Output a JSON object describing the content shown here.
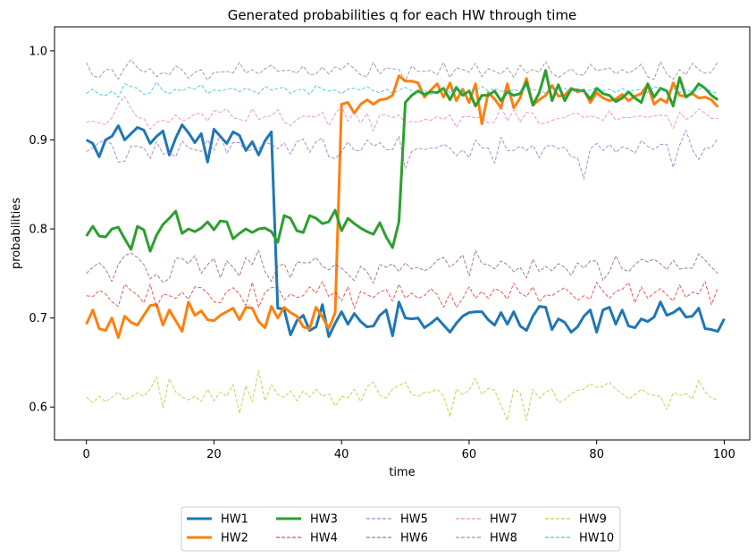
{
  "chart_data": {
    "type": "line",
    "title": "Generated probabilities q for each HW through time",
    "xlabel": "time",
    "ylabel": "probabilities",
    "xlim": [
      -5,
      104
    ],
    "ylim": [
      0.563,
      1.027
    ],
    "xticks": [
      0,
      20,
      40,
      60,
      80,
      100
    ],
    "xtick_labels": [
      "0",
      "20",
      "40",
      "60",
      "80",
      "100"
    ],
    "yticks": [
      0.6,
      0.7,
      0.8,
      0.9,
      1.0
    ],
    "ytick_labels": [
      "0.6",
      "0.7",
      "0.8",
      "0.9",
      "1.0"
    ],
    "grid": false,
    "legend_position": "bottom-center",
    "legend_columns": 5,
    "series": [
      {
        "name": "HW1",
        "color": "#1f77b4",
        "style": "solid",
        "width": "thick",
        "x_start": 0,
        "values": [
          0.9,
          0.896,
          0.881,
          0.9,
          0.904,
          0.916,
          0.9,
          0.907,
          0.914,
          0.911,
          0.896,
          0.904,
          0.91,
          0.883,
          0.902,
          0.917,
          0.908,
          0.897,
          0.907,
          0.875,
          0.912,
          0.904,
          0.896,
          0.909,
          0.905,
          0.888,
          0.898,
          0.883,
          0.899,
          0.909,
          0.711,
          0.71,
          0.681,
          0.697,
          0.703,
          0.686,
          0.69,
          0.715,
          0.679,
          0.694,
          0.707,
          0.693,
          0.705,
          0.696,
          0.69,
          0.691,
          0.703,
          0.709,
          0.68,
          0.718,
          0.7,
          0.699,
          0.7,
          0.689,
          0.694,
          0.7,
          0.692,
          0.684,
          0.694,
          0.702,
          0.706,
          0.707,
          0.707,
          0.698,
          0.692,
          0.706,
          0.693,
          0.707,
          0.691,
          0.686,
          0.702,
          0.713,
          0.712,
          0.687,
          0.699,
          0.695,
          0.684,
          0.69,
          0.702,
          0.709,
          0.684,
          0.709,
          0.712,
          0.693,
          0.709,
          0.691,
          0.689,
          0.699,
          0.696,
          0.701,
          0.718,
          0.703,
          0.706,
          0.711,
          0.701,
          0.702,
          0.711,
          0.688,
          0.687,
          0.685,
          0.699
        ]
      },
      {
        "name": "HW2",
        "color": "#ff7f0e",
        "style": "solid",
        "width": "thick",
        "x_start": 0,
        "values": [
          0.693,
          0.709,
          0.688,
          0.686,
          0.7,
          0.678,
          0.702,
          0.695,
          0.692,
          0.703,
          0.714,
          0.715,
          0.692,
          0.709,
          0.697,
          0.685,
          0.718,
          0.703,
          0.708,
          0.698,
          0.697,
          0.703,
          0.707,
          0.711,
          0.698,
          0.712,
          0.711,
          0.696,
          0.689,
          0.713,
          0.7,
          0.712,
          0.706,
          0.702,
          0.69,
          0.688,
          0.712,
          0.701,
          0.688,
          0.706,
          0.94,
          0.942,
          0.93,
          0.94,
          0.945,
          0.94,
          0.945,
          0.946,
          0.95,
          0.972,
          0.966,
          0.966,
          0.964,
          0.948,
          0.956,
          0.963,
          0.948,
          0.964,
          0.944,
          0.957,
          0.942,
          0.963,
          0.918,
          0.953,
          0.946,
          0.936,
          0.963,
          0.936,
          0.947,
          0.969,
          0.939,
          0.945,
          0.95,
          0.961,
          0.949,
          0.95,
          0.958,
          0.954,
          0.956,
          0.942,
          0.953,
          0.947,
          0.944,
          0.946,
          0.951,
          0.944,
          0.949,
          0.952,
          0.962,
          0.94,
          0.946,
          0.942,
          0.964,
          0.95,
          0.949,
          0.952,
          0.947,
          0.948,
          0.945,
          0.937
        ]
      },
      {
        "name": "HW3",
        "color": "#2ca02c",
        "style": "solid",
        "width": "thick",
        "x_start": 0,
        "values": [
          0.792,
          0.803,
          0.792,
          0.791,
          0.8,
          0.802,
          0.789,
          0.777,
          0.803,
          0.799,
          0.775,
          0.793,
          0.805,
          0.812,
          0.82,
          0.795,
          0.8,
          0.797,
          0.801,
          0.808,
          0.799,
          0.809,
          0.808,
          0.789,
          0.795,
          0.8,
          0.796,
          0.8,
          0.801,
          0.797,
          0.785,
          0.815,
          0.812,
          0.798,
          0.796,
          0.815,
          0.812,
          0.806,
          0.808,
          0.821,
          0.798,
          0.812,
          0.806,
          0.801,
          0.797,
          0.794,
          0.807,
          0.791,
          0.779,
          0.808,
          0.942,
          0.95,
          0.955,
          0.951,
          0.954,
          0.953,
          0.958,
          0.945,
          0.959,
          0.95,
          0.955,
          0.938,
          0.95,
          0.95,
          0.955,
          0.944,
          0.954,
          0.95,
          0.952,
          0.965,
          0.939,
          0.953,
          0.978,
          0.944,
          0.962,
          0.944,
          0.957,
          0.956,
          0.955,
          0.946,
          0.958,
          0.952,
          0.95,
          0.943,
          0.947,
          0.954,
          0.947,
          0.942,
          0.963,
          0.948,
          0.958,
          0.955,
          0.938,
          0.97,
          0.948,
          0.953,
          0.963,
          0.958,
          0.95,
          0.945
        ]
      },
      {
        "name": "HW4",
        "color": "#d62728",
        "style": "dashed",
        "width": "thin",
        "x_start": 0,
        "values": [
          0.725,
          0.724,
          0.731,
          0.727,
          0.718,
          0.713,
          0.738,
          0.731,
          0.726,
          0.717,
          0.738,
          0.712,
          0.727,
          0.725,
          0.722,
          0.729,
          0.721,
          0.735,
          0.734,
          0.728,
          0.718,
          0.717,
          0.73,
          0.734,
          0.727,
          0.714,
          0.74,
          0.712,
          0.729,
          0.734,
          0.735,
          0.72,
          0.727,
          0.723,
          0.725,
          0.735,
          0.728,
          0.741,
          0.724,
          0.729,
          0.719,
          0.735,
          0.711,
          0.73,
          0.726,
          0.723,
          0.729,
          0.732,
          0.719,
          0.738,
          0.722,
          0.728,
          0.722,
          0.725,
          0.733,
          0.726,
          0.712,
          0.728,
          0.712,
          0.722,
          0.735,
          0.722,
          0.73,
          0.722,
          0.733,
          0.73,
          0.721,
          0.739,
          0.728,
          0.724,
          0.735,
          0.718,
          0.726,
          0.725,
          0.73,
          0.734,
          0.727,
          0.72,
          0.725,
          0.721,
          0.74,
          0.73,
          0.722,
          0.73,
          0.732,
          0.74,
          0.717,
          0.735,
          0.722,
          0.728,
          0.733,
          0.726,
          0.719,
          0.737,
          0.723,
          0.729,
          0.727,
          0.741,
          0.715,
          0.734
        ]
      },
      {
        "name": "HW5",
        "color": "#9467bd",
        "style": "dashed",
        "width": "thin",
        "x_start": 0,
        "values": [
          0.887,
          0.891,
          0.897,
          0.9,
          0.895,
          0.875,
          0.876,
          0.893,
          0.893,
          0.891,
          0.879,
          0.898,
          0.884,
          0.886,
          0.881,
          0.899,
          0.891,
          0.889,
          0.887,
          0.9,
          0.888,
          0.906,
          0.885,
          0.897,
          0.897,
          0.887,
          0.889,
          0.89,
          0.897,
          0.895,
          0.89,
          0.897,
          0.884,
          0.898,
          0.901,
          0.886,
          0.898,
          0.902,
          0.881,
          0.879,
          0.886,
          0.898,
          0.888,
          0.888,
          0.9,
          0.893,
          0.897,
          0.889,
          0.889,
          0.904,
          0.868,
          0.887,
          0.891,
          0.889,
          0.891,
          0.891,
          0.895,
          0.891,
          0.882,
          0.889,
          0.88,
          0.9,
          0.891,
          0.891,
          0.874,
          0.903,
          0.888,
          0.888,
          0.893,
          0.888,
          0.894,
          0.88,
          0.893,
          0.894,
          0.89,
          0.892,
          0.881,
          0.88,
          0.856,
          0.89,
          0.896,
          0.888,
          0.895,
          0.886,
          0.892,
          0.89,
          0.885,
          0.899,
          0.893,
          0.889,
          0.895,
          0.895,
          0.869,
          0.894,
          0.911,
          0.889,
          0.878,
          0.891,
          0.891,
          0.902
        ]
      },
      {
        "name": "HW6",
        "color": "#8c564b",
        "style": "dashed",
        "width": "thin",
        "x_start": 0,
        "values": [
          0.75,
          0.757,
          0.762,
          0.755,
          0.741,
          0.76,
          0.77,
          0.773,
          0.768,
          0.76,
          0.744,
          0.749,
          0.74,
          0.744,
          0.767,
          0.767,
          0.761,
          0.77,
          0.75,
          0.76,
          0.767,
          0.745,
          0.764,
          0.757,
          0.747,
          0.768,
          0.76,
          0.776,
          0.752,
          0.741,
          0.758,
          0.761,
          0.745,
          0.763,
          0.762,
          0.762,
          0.768,
          0.758,
          0.754,
          0.76,
          0.756,
          0.749,
          0.742,
          0.758,
          0.752,
          0.739,
          0.76,
          0.757,
          0.761,
          0.752,
          0.762,
          0.755,
          0.757,
          0.753,
          0.757,
          0.765,
          0.768,
          0.757,
          0.763,
          0.771,
          0.747,
          0.776,
          0.761,
          0.76,
          0.755,
          0.764,
          0.76,
          0.752,
          0.757,
          0.745,
          0.766,
          0.752,
          0.758,
          0.753,
          0.761,
          0.757,
          0.748,
          0.762,
          0.756,
          0.764,
          0.764,
          0.742,
          0.752,
          0.77,
          0.755,
          0.752,
          0.76,
          0.766,
          0.763,
          0.766,
          0.761,
          0.754,
          0.765,
          0.755,
          0.756,
          0.756,
          0.772,
          0.765,
          0.757,
          0.75
        ]
      },
      {
        "name": "HW7",
        "color": "#e377c2",
        "style": "dashed",
        "width": "thin",
        "x_start": 0,
        "values": [
          0.92,
          0.921,
          0.919,
          0.917,
          0.925,
          0.94,
          0.949,
          0.935,
          0.925,
          0.924,
          0.912,
          0.92,
          0.922,
          0.92,
          0.928,
          0.921,
          0.924,
          0.929,
          0.93,
          0.921,
          0.933,
          0.931,
          0.935,
          0.925,
          0.923,
          0.921,
          0.935,
          0.923,
          0.926,
          0.927,
          0.934,
          0.92,
          0.916,
          0.923,
          0.927,
          0.926,
          0.926,
          0.931,
          0.916,
          0.929,
          0.938,
          0.921,
          0.931,
          0.919,
          0.93,
          0.91,
          0.928,
          0.928,
          0.925,
          0.928,
          0.919,
          0.921,
          0.92,
          0.923,
          0.922,
          0.926,
          0.923,
          0.928,
          0.914,
          0.926,
          0.926,
          0.925,
          0.925,
          0.919,
          0.92,
          0.938,
          0.921,
          0.934,
          0.92,
          0.931,
          0.93,
          0.918,
          0.919,
          0.922,
          0.924,
          0.925,
          0.929,
          0.93,
          0.925,
          0.927,
          0.925,
          0.922,
          0.933,
          0.922,
          0.925,
          0.925,
          0.926,
          0.927,
          0.925,
          0.927,
          0.928,
          0.927,
          0.913,
          0.931,
          0.923,
          0.927,
          0.935,
          0.93,
          0.924,
          0.924
        ]
      },
      {
        "name": "HW8",
        "color": "#7f7f7f",
        "style": "dashed",
        "width": "thin",
        "x_start": 0,
        "values": [
          0.987,
          0.972,
          0.97,
          0.979,
          0.979,
          0.968,
          0.981,
          0.99,
          0.981,
          0.976,
          0.98,
          0.971,
          0.976,
          0.973,
          0.983,
          0.979,
          0.969,
          0.976,
          0.979,
          0.967,
          0.976,
          0.976,
          0.977,
          0.975,
          0.987,
          0.975,
          0.979,
          0.974,
          0.98,
          0.984,
          0.977,
          0.978,
          0.978,
          0.975,
          0.983,
          0.973,
          0.974,
          0.982,
          0.974,
          0.982,
          0.979,
          0.986,
          0.98,
          0.973,
          0.971,
          0.987,
          0.974,
          0.981,
          0.98,
          0.979,
          0.966,
          0.983,
          0.977,
          0.977,
          0.978,
          0.973,
          0.987,
          0.97,
          0.981,
          0.979,
          0.976,
          0.986,
          0.971,
          0.98,
          0.977,
          0.974,
          0.981,
          0.97,
          0.984,
          0.975,
          0.979,
          0.976,
          0.988,
          0.975,
          0.97,
          0.975,
          0.98,
          0.973,
          0.973,
          0.985,
          0.978,
          0.979,
          0.981,
          0.974,
          0.979,
          0.975,
          0.979,
          0.985,
          0.971,
          0.968,
          0.988,
          0.974,
          0.968,
          0.979,
          0.973,
          0.986,
          0.979,
          0.975,
          0.976,
          0.988
        ]
      },
      {
        "name": "HW9",
        "color": "#bcbd22",
        "style": "dashed",
        "width": "thin",
        "x_start": 0,
        "values": [
          0.611,
          0.605,
          0.612,
          0.606,
          0.611,
          0.617,
          0.608,
          0.611,
          0.616,
          0.612,
          0.62,
          0.634,
          0.599,
          0.632,
          0.617,
          0.611,
          0.608,
          0.612,
          0.606,
          0.62,
          0.607,
          0.617,
          0.612,
          0.625,
          0.593,
          0.624,
          0.606,
          0.641,
          0.607,
          0.625,
          0.614,
          0.611,
          0.618,
          0.607,
          0.618,
          0.611,
          0.62,
          0.612,
          0.615,
          0.601,
          0.612,
          0.61,
          0.62,
          0.606,
          0.623,
          0.628,
          0.613,
          0.61,
          0.62,
          0.624,
          0.628,
          0.614,
          0.612,
          0.616,
          0.617,
          0.62,
          0.612,
          0.589,
          0.62,
          0.614,
          0.619,
          0.632,
          0.614,
          0.621,
          0.619,
          0.602,
          0.585,
          0.62,
          0.616,
          0.585,
          0.62,
          0.61,
          0.617,
          0.62,
          0.605,
          0.608,
          0.615,
          0.619,
          0.62,
          0.626,
          0.622,
          0.623,
          0.628,
          0.62,
          0.615,
          0.609,
          0.614,
          0.62,
          0.615,
          0.613,
          0.612,
          0.597,
          0.616,
          0.613,
          0.615,
          0.609,
          0.63,
          0.617,
          0.61,
          0.608
        ]
      },
      {
        "name": "HW10",
        "color": "#17becf",
        "style": "dashed",
        "width": "thin",
        "x_start": 0,
        "values": [
          0.952,
          0.957,
          0.951,
          0.95,
          0.955,
          0.948,
          0.963,
          0.96,
          0.958,
          0.951,
          0.953,
          0.965,
          0.955,
          0.952,
          0.957,
          0.955,
          0.959,
          0.957,
          0.962,
          0.952,
          0.956,
          0.955,
          0.957,
          0.958,
          0.954,
          0.958,
          0.955,
          0.952,
          0.96,
          0.956,
          0.958,
          0.959,
          0.952,
          0.956,
          0.957,
          0.951,
          0.961,
          0.957,
          0.955,
          0.956,
          0.952,
          0.957,
          0.958,
          0.956,
          0.96,
          0.955,
          0.953,
          0.957,
          0.952,
          0.956,
          0.959,
          0.955,
          0.954,
          0.956,
          0.951,
          0.956,
          0.957,
          0.953,
          0.959,
          0.955,
          0.954,
          0.956,
          0.96,
          0.955,
          0.958,
          0.955,
          0.953,
          0.957,
          0.954,
          0.96,
          0.956,
          0.957,
          0.952,
          0.96,
          0.955,
          0.958,
          0.954,
          0.957,
          0.953,
          0.956,
          0.959,
          0.955,
          0.957,
          0.953,
          0.958,
          0.954,
          0.956,
          0.957,
          0.953,
          0.96,
          0.957,
          0.955,
          0.958,
          0.953,
          0.956,
          0.954,
          0.957,
          0.959,
          0.954,
          0.952
        ]
      }
    ]
  }
}
